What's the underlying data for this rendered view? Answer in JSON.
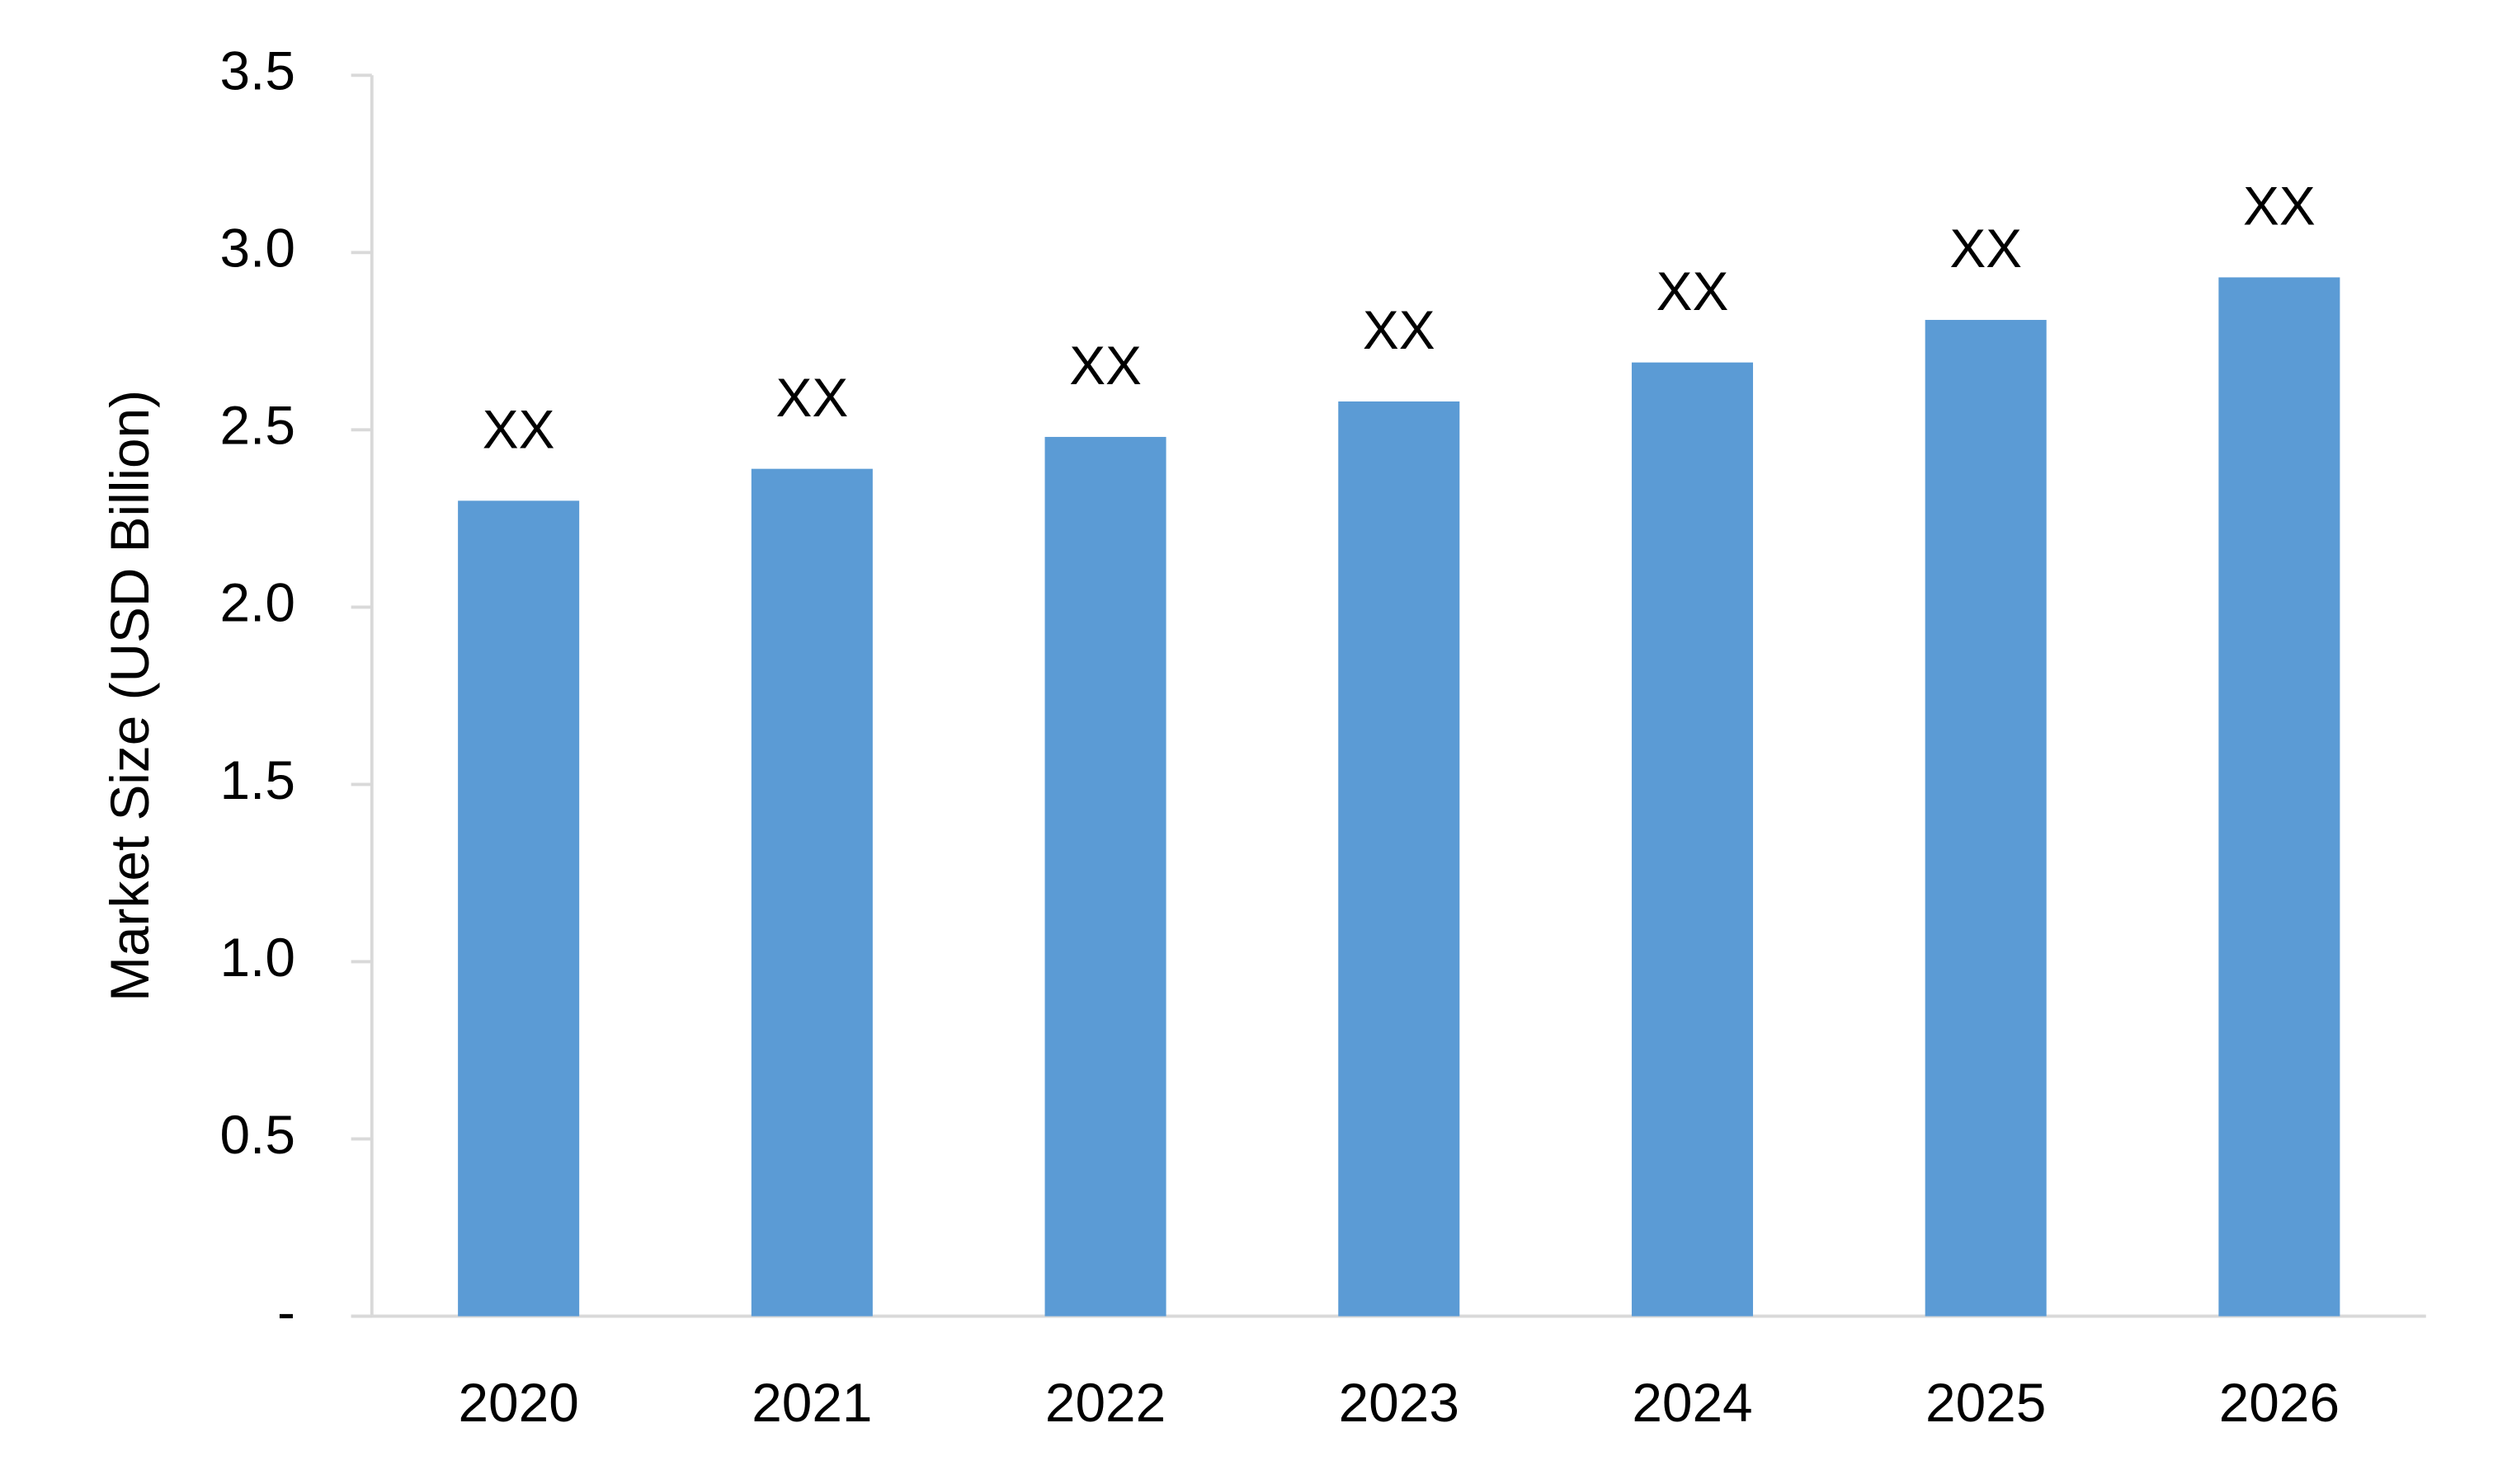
{
  "chart_data": {
    "type": "bar",
    "y_axis_label": "Market Size (USD Billion)",
    "categories": [
      "2020",
      "2021",
      "2022",
      "2023",
      "2024",
      "2025",
      "2026"
    ],
    "values": [
      2.3,
      2.39,
      2.48,
      2.58,
      2.69,
      2.81,
      2.93
    ],
    "bar_labels": [
      "XX",
      "XX",
      "XX",
      "XX",
      "XX",
      "XX",
      "XX"
    ],
    "color": "#5b9bd5",
    "ylim": [
      0,
      3.5
    ],
    "yticks": [
      {
        "value": 0,
        "label": "-"
      },
      0.5,
      {
        "value": 1,
        "label": "1.0"
      },
      1.5,
      {
        "value": 2,
        "label": "2.0"
      },
      2.5,
      {
        "value": 3,
        "label": "3.0"
      },
      3.5
    ],
    "grid": false
  }
}
